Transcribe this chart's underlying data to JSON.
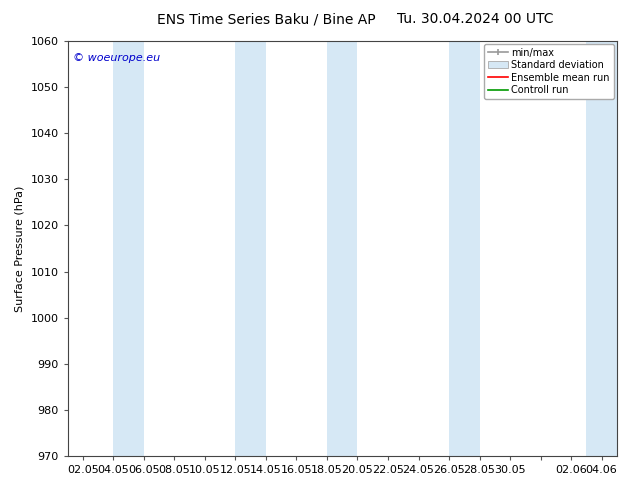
{
  "title_left": "ENS Time Series Baku / Bine AP",
  "title_right": "Tu. 30.04.2024 00 UTC",
  "ylabel": "Surface Pressure (hPa)",
  "ylim": [
    970,
    1060
  ],
  "yticks": [
    970,
    980,
    990,
    1000,
    1010,
    1020,
    1030,
    1040,
    1050,
    1060
  ],
  "xtick_labels": [
    "02.05",
    "04.05",
    "06.05",
    "08.05",
    "10.05",
    "12.05",
    "14.05",
    "16.05",
    "18.05",
    "20.05",
    "22.05",
    "24.05",
    "26.05",
    "28.05",
    "30.05",
    "",
    "02.06",
    "04.06"
  ],
  "bg_color": "#ffffff",
  "plot_bg_color": "#ffffff",
  "band_color": "#d6e8f5",
  "copyright_text": "© woeurope.eu",
  "legend_labels": [
    "min/max",
    "Standard deviation",
    "Ensemble mean run",
    "Controll run"
  ],
  "legend_colors_line": [
    "#888888",
    "#bbccdd",
    "#ff0000",
    "#009900"
  ],
  "title_fontsize": 10,
  "axis_fontsize": 8,
  "tick_fontsize": 8
}
